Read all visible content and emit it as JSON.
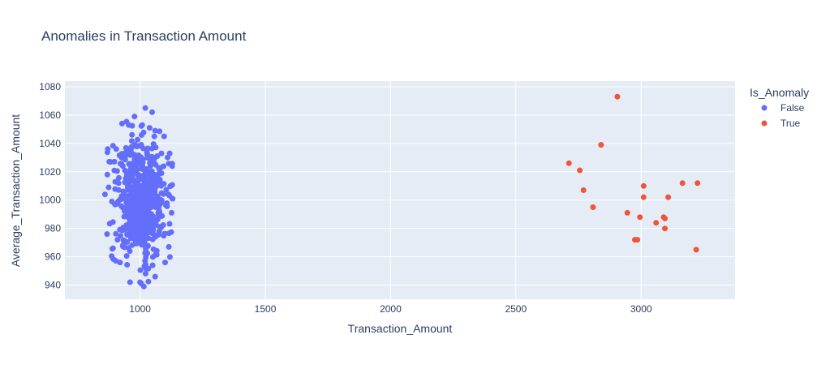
{
  "chart_data": {
    "type": "scatter",
    "title": "Anomalies in Transaction Amount",
    "xlabel": "Transaction_Amount",
    "ylabel": "Average_Transaction_Amount",
    "xlim": [
      700,
      3375
    ],
    "ylim": [
      930,
      1084
    ],
    "xticks": [
      1000,
      1500,
      2000,
      2500,
      3000
    ],
    "yticks": [
      940,
      960,
      980,
      1000,
      1020,
      1040,
      1060,
      1080
    ],
    "grid": true,
    "legend_title": "Is_Anomaly",
    "legend_position": "right",
    "series": [
      {
        "name": "False",
        "color": "#636efa",
        "cluster": {
          "count": 650,
          "x_mean": 1000,
          "x_std": 50,
          "x_min": 858,
          "x_max": 1128,
          "y_mean": 1000,
          "y_std": 20,
          "y_min": 939,
          "y_max": 1065
        },
        "points": [
          {
            "x": 1021,
            "y": 1065
          },
          {
            "x": 1048,
            "y": 1062
          },
          {
            "x": 978,
            "y": 1059
          },
          {
            "x": 928,
            "y": 1054
          },
          {
            "x": 955,
            "y": 1053
          },
          {
            "x": 1038,
            "y": 1051
          },
          {
            "x": 1060,
            "y": 1049
          },
          {
            "x": 1096,
            "y": 1045
          },
          {
            "x": 905,
            "y": 1036
          },
          {
            "x": 871,
            "y": 1036
          },
          {
            "x": 1118,
            "y": 1033
          },
          {
            "x": 882,
            "y": 1027
          },
          {
            "x": 1128,
            "y": 1024
          },
          {
            "x": 860,
            "y": 1004
          },
          {
            "x": 1130,
            "y": 1001
          },
          {
            "x": 1126,
            "y": 991
          },
          {
            "x": 868,
            "y": 976
          },
          {
            "x": 892,
            "y": 966
          },
          {
            "x": 1115,
            "y": 967
          },
          {
            "x": 920,
            "y": 956
          },
          {
            "x": 1050,
            "y": 954
          },
          {
            "x": 1100,
            "y": 956
          },
          {
            "x": 1060,
            "y": 946
          },
          {
            "x": 960,
            "y": 942
          },
          {
            "x": 1005,
            "y": 941
          },
          {
            "x": 1015,
            "y": 939
          },
          {
            "x": 1000,
            "y": 942
          }
        ]
      },
      {
        "name": "True",
        "color": "#ef553b",
        "points": [
          {
            "x": 2905,
            "y": 1073
          },
          {
            "x": 2840,
            "y": 1039
          },
          {
            "x": 2712,
            "y": 1026
          },
          {
            "x": 2755,
            "y": 1021
          },
          {
            "x": 3165,
            "y": 1012
          },
          {
            "x": 3225,
            "y": 1012
          },
          {
            "x": 3010,
            "y": 1010
          },
          {
            "x": 2770,
            "y": 1007
          },
          {
            "x": 3010,
            "y": 1002
          },
          {
            "x": 3108,
            "y": 1002
          },
          {
            "x": 2808,
            "y": 995
          },
          {
            "x": 2945,
            "y": 991
          },
          {
            "x": 2995,
            "y": 988
          },
          {
            "x": 3090,
            "y": 988
          },
          {
            "x": 3095,
            "y": 987
          },
          {
            "x": 3060,
            "y": 984
          },
          {
            "x": 3095,
            "y": 980
          },
          {
            "x": 2975,
            "y": 972
          },
          {
            "x": 2985,
            "y": 972
          },
          {
            "x": 3220,
            "y": 965
          }
        ]
      }
    ]
  }
}
